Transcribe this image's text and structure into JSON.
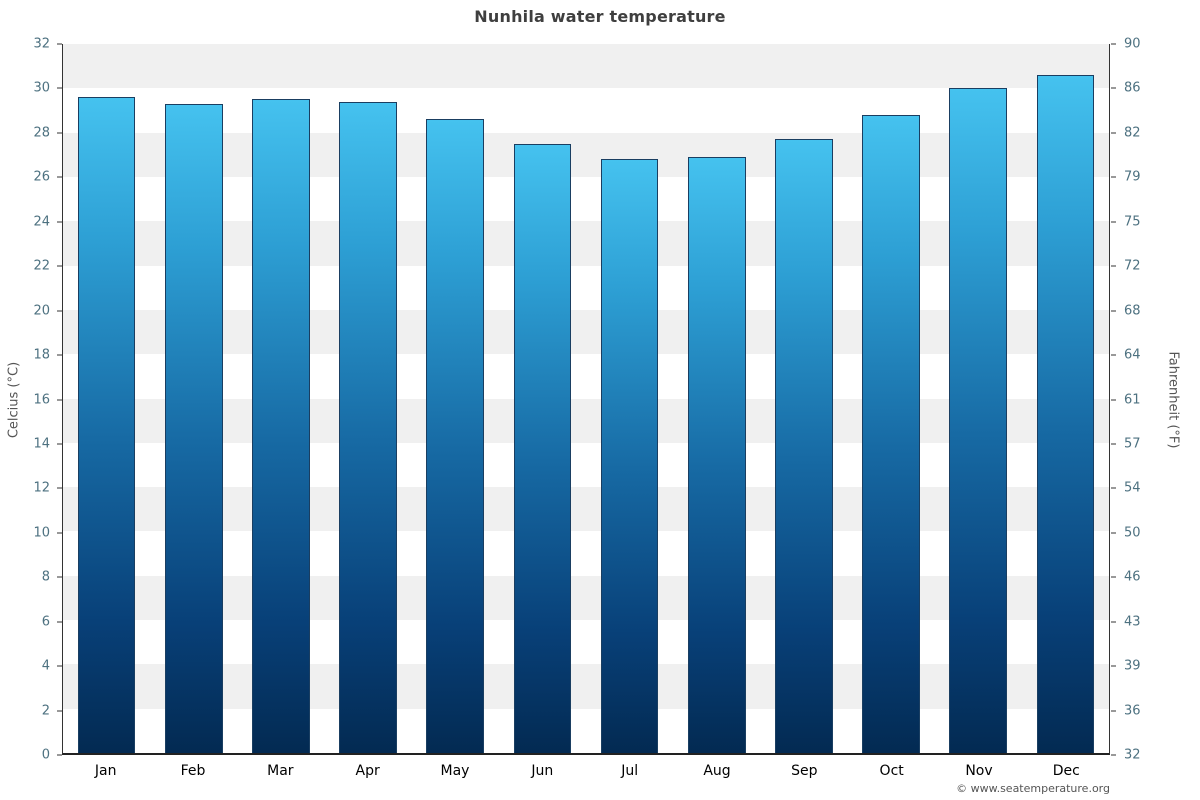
{
  "chart_data": {
    "type": "bar",
    "title": "Nunhila water temperature",
    "categories": [
      "Jan",
      "Feb",
      "Mar",
      "Apr",
      "May",
      "Jun",
      "Jul",
      "Aug",
      "Sep",
      "Oct",
      "Nov",
      "Dec"
    ],
    "values": [
      29.6,
      29.3,
      29.5,
      29.4,
      28.6,
      27.5,
      26.8,
      26.9,
      27.7,
      28.8,
      30.0,
      30.6
    ],
    "ylabel_left": "Celcius (°C)",
    "ylabel_right": "Fahrenheit (°F)",
    "ylim_c": [
      0,
      32
    ],
    "yticks_c": [
      0,
      2,
      4,
      6,
      8,
      10,
      12,
      14,
      16,
      18,
      20,
      22,
      24,
      26,
      28,
      30,
      32
    ],
    "yticks_f": [
      32,
      36,
      39,
      43,
      46,
      50,
      54,
      57,
      61,
      64,
      68,
      72,
      75,
      79,
      82,
      86,
      90
    ],
    "grid": "striped-bands",
    "legend": "none",
    "bar_color_top": "#45c2ef",
    "bar_color_bottom": "#032a52",
    "band_color_a": "#ffffff",
    "band_color_b": "#f0f0f0"
  },
  "footer": {
    "credit": "© www.seatemperature.org"
  }
}
